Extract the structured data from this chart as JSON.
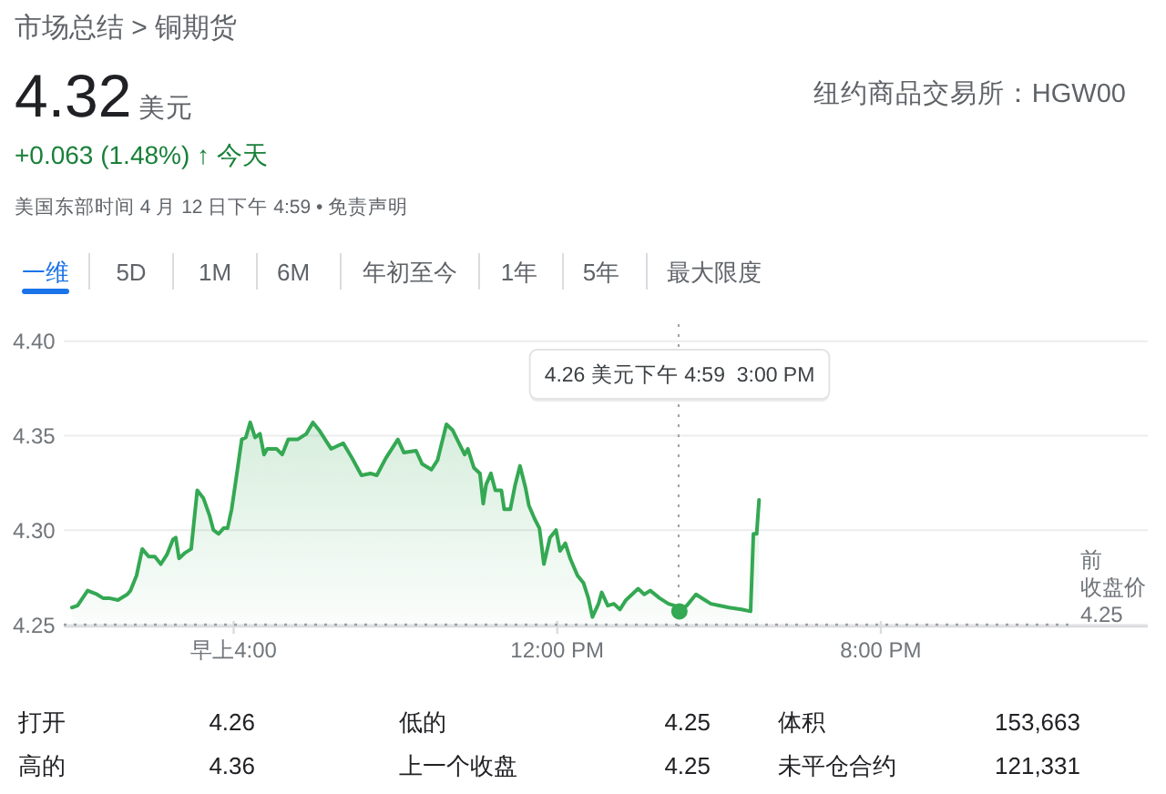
{
  "chart_data": {
    "type": "area",
    "title": "市场总结 > 铜期货",
    "x": [
      0,
      0.14,
      0.39,
      0.62,
      0.77,
      0.92,
      1.14,
      1.37,
      1.45,
      1.6,
      1.74,
      1.9,
      2.05,
      2.2,
      2.35,
      2.5,
      2.57,
      2.65,
      2.8,
      2.95,
      3.1,
      3.25,
      3.4,
      3.5,
      3.63,
      3.75,
      3.85,
      3.95,
      4.08,
      4.2,
      4.3,
      4.41,
      4.53,
      4.65,
      4.75,
      4.83,
      5.06,
      5.2,
      5.35,
      5.58,
      5.8,
      5.96,
      6.11,
      6.41,
      6.71,
      6.93,
      7.16,
      7.38,
      7.54,
      7.76,
      8.06,
      8.21,
      8.51,
      8.66,
      8.89,
      9.04,
      9.26,
      9.41,
      9.57,
      9.71,
      9.79,
      9.94,
      10.09,
      10.17,
      10.24,
      10.36,
      10.47,
      10.62,
      10.69,
      10.84,
      10.96,
      11.08,
      11.22,
      11.3,
      11.44,
      11.56,
      11.67,
      11.82,
      11.97,
      12.07,
      12.2,
      12.32,
      12.5,
      12.65,
      12.77,
      12.87,
      13.02,
      13.1,
      13.25,
      13.4,
      13.55,
      13.7,
      13.85,
      14.0,
      14.15,
      14.3,
      14.53,
      14.75,
      14.9,
      15.02,
      15.2,
      15.43,
      15.65,
      15.8,
      16.03,
      16.25,
      16.55,
      16.78,
      16.85,
      16.93,
      16.99
    ],
    "values": [
      4.259,
      4.26,
      4.268,
      4.266,
      4.264,
      4.264,
      4.263,
      4.266,
      4.268,
      4.276,
      4.29,
      4.286,
      4.286,
      4.282,
      4.287,
      4.295,
      4.296,
      4.285,
      4.288,
      4.29,
      4.321,
      4.317,
      4.308,
      4.3,
      4.298,
      4.301,
      4.301,
      4.311,
      4.33,
      4.348,
      4.349,
      4.357,
      4.349,
      4.351,
      4.34,
      4.343,
      4.343,
      4.34,
      4.348,
      4.348,
      4.351,
      4.357,
      4.353,
      4.343,
      4.346,
      4.338,
      4.329,
      4.33,
      4.329,
      4.338,
      4.348,
      4.341,
      4.342,
      4.335,
      4.332,
      4.337,
      4.356,
      4.353,
      4.346,
      4.34,
      4.343,
      4.333,
      4.33,
      4.314,
      4.324,
      4.33,
      4.321,
      4.321,
      4.311,
      4.311,
      4.324,
      4.334,
      4.322,
      4.313,
      4.306,
      4.301,
      4.282,
      4.296,
      4.3,
      4.289,
      4.293,
      4.285,
      4.276,
      4.272,
      4.264,
      4.254,
      4.261,
      4.267,
      4.26,
      4.261,
      4.258,
      4.263,
      4.266,
      4.269,
      4.266,
      4.268,
      4.264,
      4.261,
      4.26,
      4.257,
      4.26,
      4.266,
      4.263,
      4.261,
      4.26,
      4.259,
      4.258,
      4.257,
      4.298,
      4.298,
      4.316
    ],
    "color": "#34a853",
    "xlim": [
      -0.2,
      26.6
    ],
    "xticks": [
      {
        "value": 4,
        "label": "早上4:00"
      },
      {
        "value": 12,
        "label": "12:00 PM"
      },
      {
        "value": 20,
        "label": "8:00 PM"
      }
    ],
    "ylim": [
      4.249,
      4.409
    ],
    "yticks": [
      4.25,
      {
        "value": 4.3,
        "label": "4.30"
      },
      4.35,
      {
        "value": 4.4,
        "label": "4.40"
      }
    ],
    "grid": "y",
    "ref_lines": [
      {
        "axis": "y",
        "value": 4.25,
        "label": "前收盘价 4.25",
        "line_style": "dotted",
        "color": "#9aa0a6"
      },
      {
        "axis": "x",
        "value": 15,
        "line_style": "dotted",
        "color": "#9aa0a6"
      }
    ],
    "annotations": [
      "4.32",
      "美元",
      "+0.063 (1.48%) ↑ 今天",
      "美国东部时间 4 月 12 日下午 4:59 • 免责声明",
      "纽约商品交易所：HGW00",
      "一维",
      "5D",
      "1M",
      "6M",
      "年初至今",
      "1年",
      "5年",
      "最大限度",
      "4.26 美元下午 4:59  3:00 PM",
      "打开",
      "4.26",
      "高的",
      "4.36",
      "低的",
      "4.25",
      "上一个收盘",
      "4.25",
      "体积",
      "153,663",
      "未平仓合约",
      "121,331"
    ]
  }
}
